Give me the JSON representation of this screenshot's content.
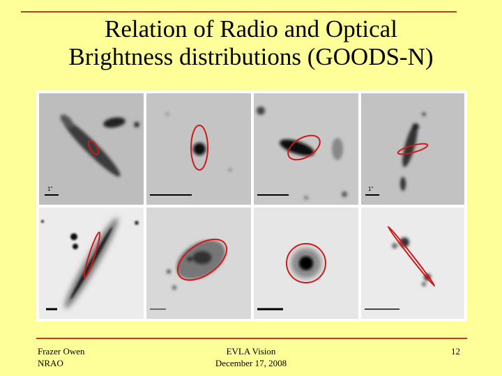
{
  "slide": {
    "title_line1": "Relation of Radio and Optical",
    "title_line2": "Brightness distributions (GOODS-N)",
    "accent_color": "#c0392b",
    "background_color": "#ffff99"
  },
  "figure": {
    "panels": [
      {
        "id": 1,
        "label": "1\""
      },
      {
        "id": 2,
        "label": ""
      },
      {
        "id": 3,
        "label": ""
      },
      {
        "id": 4,
        "label": "1\""
      },
      {
        "id": 5,
        "label": ""
      },
      {
        "id": 6,
        "label": ""
      },
      {
        "id": 7,
        "label": ""
      },
      {
        "id": 8,
        "label": ""
      }
    ]
  },
  "footer": {
    "author_line1": "Frazer Owen",
    "author_line2": "NRAO",
    "center_line1": "EVLA Vision",
    "center_line2": "December 17, 2008",
    "page_number": "12"
  }
}
